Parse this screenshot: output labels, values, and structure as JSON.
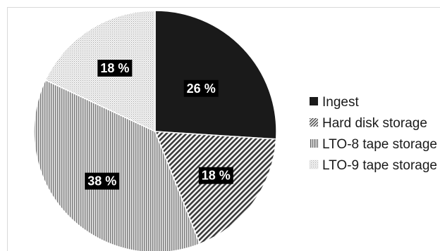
{
  "chart_data": {
    "type": "pie",
    "categories": [
      "Ingest",
      "Hard disk storage",
      "LTO-8 tape storage",
      "LTO-9 tape storage"
    ],
    "values": [
      26,
      18,
      38,
      18
    ],
    "data_labels": [
      "26 %",
      "18 %",
      "38 %",
      "18 %"
    ],
    "patterns": [
      "solid-black",
      "diagonal-hatch",
      "vertical-lines",
      "fine-dots"
    ],
    "start_angle": "12 o'clock",
    "direction": "clockwise",
    "title": "",
    "legend_position": "right"
  }
}
